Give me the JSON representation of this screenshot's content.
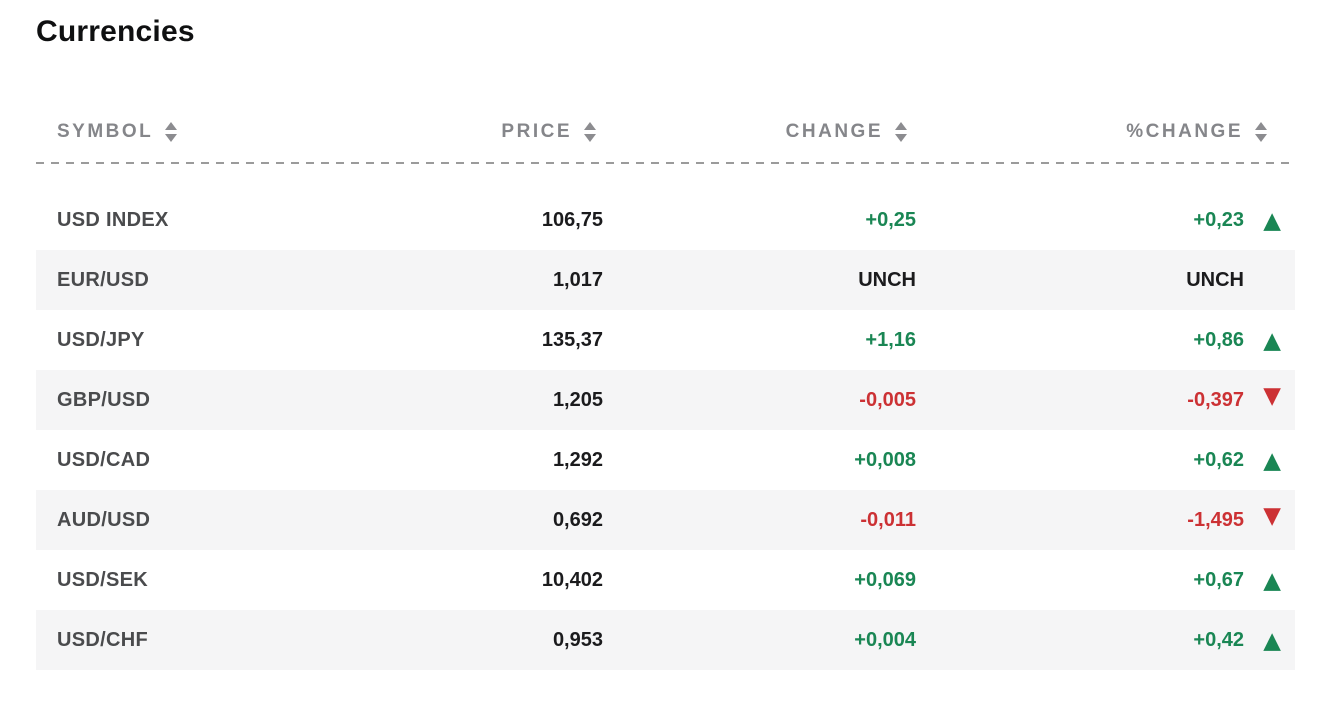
{
  "page": {
    "title": "Currencies"
  },
  "table": {
    "columns": [
      {
        "key": "symbol",
        "label": "SYMBOL",
        "sortable": true
      },
      {
        "key": "price",
        "label": "PRICE",
        "sortable": true
      },
      {
        "key": "change",
        "label": "CHANGE",
        "sortable": true
      },
      {
        "key": "pct_change",
        "label": "%CHANGE",
        "sortable": true
      }
    ],
    "rows": [
      {
        "symbol": "USD INDEX",
        "price": "106,75",
        "change": "+0,25",
        "pct_change": "+0,23",
        "trend": "up"
      },
      {
        "symbol": "EUR/USD",
        "price": "1,017",
        "change": "UNCH",
        "pct_change": "UNCH",
        "trend": "unch"
      },
      {
        "symbol": "USD/JPY",
        "price": "135,37",
        "change": "+1,16",
        "pct_change": "+0,86",
        "trend": "up"
      },
      {
        "symbol": "GBP/USD",
        "price": "1,205",
        "change": "-0,005",
        "pct_change": "-0,397",
        "trend": "down"
      },
      {
        "symbol": "USD/CAD",
        "price": "1,292",
        "change": "+0,008",
        "pct_change": "+0,62",
        "trend": "up"
      },
      {
        "symbol": "AUD/USD",
        "price": "0,692",
        "change": "-0,011",
        "pct_change": "-1,495",
        "trend": "down"
      },
      {
        "symbol": "USD/SEK",
        "price": "10,402",
        "change": "+0,069",
        "pct_change": "+0,67",
        "trend": "up"
      },
      {
        "symbol": "USD/CHF",
        "price": "0,953",
        "change": "+0,004",
        "pct_change": "+0,42",
        "trend": "up"
      }
    ]
  },
  "icons": {
    "sort": "up-down-triangles",
    "trend_up": "▲",
    "trend_down": "▼"
  },
  "colors": {
    "positive": "#1a8654",
    "negative": "#cc3134",
    "neutral_text": "#1b1b1d",
    "symbol_text": "#4a4b4d",
    "header_text": "#85868a",
    "alt_row_bg": "#f5f5f6",
    "divider": "#9b9b9b"
  }
}
